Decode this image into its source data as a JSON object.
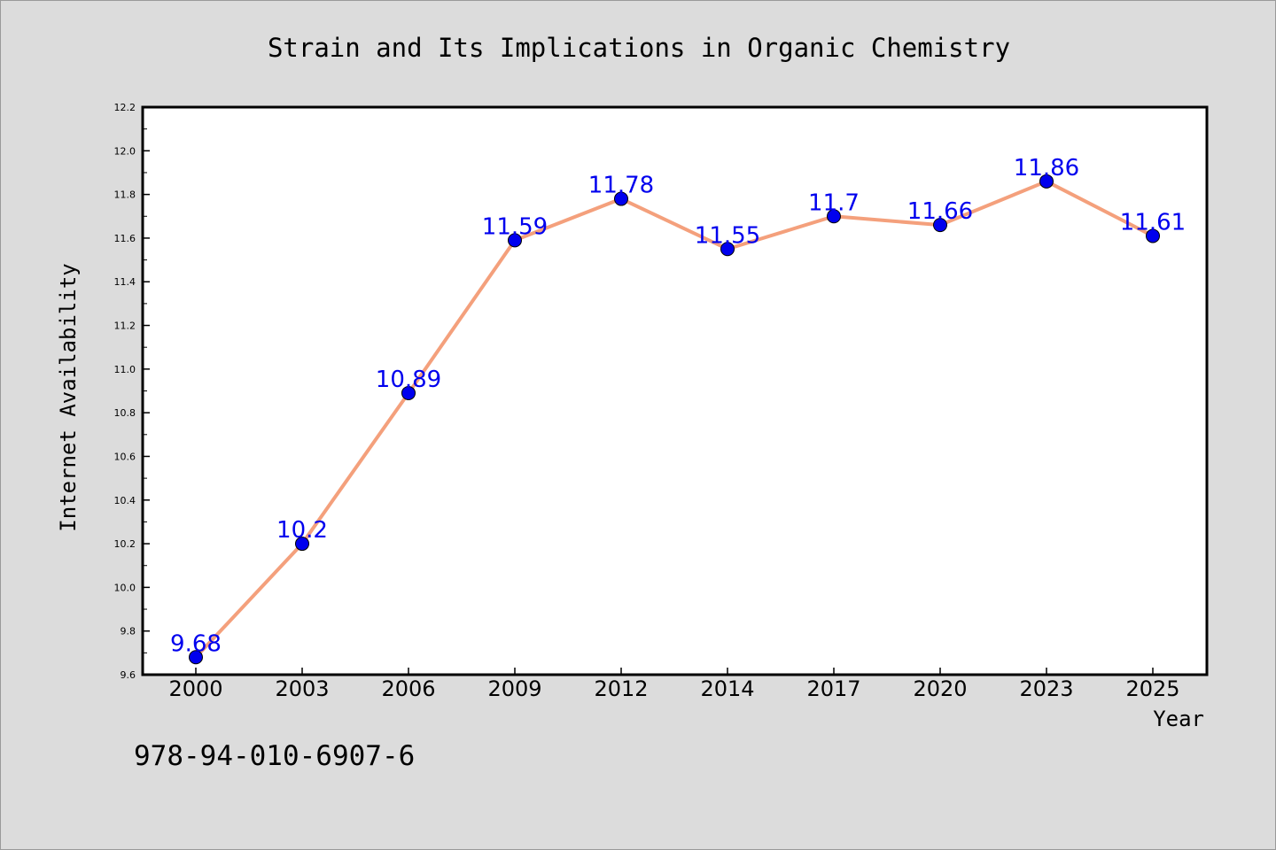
{
  "chart_data": {
    "type": "line",
    "title": "Strain and Its Implications in Organic Chemistry",
    "xlabel": "Year",
    "ylabel": "Internet Availability",
    "categories": [
      "2000",
      "2003",
      "2006",
      "2009",
      "2012",
      "2014",
      "2017",
      "2020",
      "2023",
      "2025"
    ],
    "series": [
      {
        "values": [
          9.68,
          10.2,
          10.89,
          11.59,
          11.78,
          11.55,
          11.7,
          11.66,
          11.86,
          11.61
        ],
        "labels": [
          "9.68",
          "10.2",
          "10.89",
          "11.59",
          "11.78",
          "11.55",
          "11.7",
          "11.66",
          "11.86",
          "11.61"
        ],
        "line_color": "#f4a07c",
        "marker_color": "#0000ee",
        "label_color": "#0000ee"
      }
    ],
    "ylim": [
      9.6,
      12.2
    ],
    "y_ticks": [
      "9.6",
      "9.8",
      "10.0",
      "10.2",
      "10.4",
      "10.6",
      "10.8",
      "11.0",
      "11.2",
      "11.4",
      "11.6",
      "11.8",
      "12.0",
      "12.2"
    ],
    "grid": false,
    "legend": "none"
  },
  "footer": {
    "isbn": "978-94-010-6907-6"
  }
}
